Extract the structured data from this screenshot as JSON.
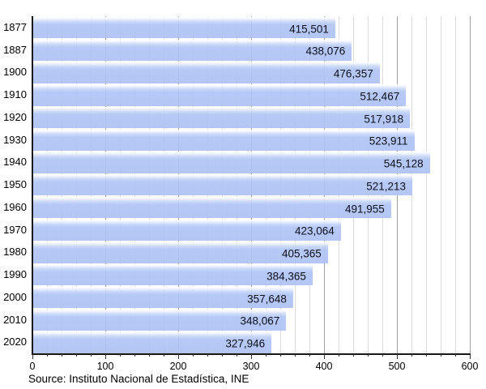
{
  "chart_data": {
    "type": "bar",
    "orientation": "horizontal",
    "title": "",
    "categories": [
      "1877",
      "1887",
      "1900",
      "1910",
      "1920",
      "1930",
      "1940",
      "1950",
      "1960",
      "1970",
      "1980",
      "1990",
      "2000",
      "2010",
      "2020"
    ],
    "values": [
      415501,
      438076,
      476357,
      512467,
      517918,
      523911,
      545128,
      521213,
      491955,
      423064,
      405365,
      384365,
      357648,
      348067,
      327946
    ],
    "value_labels": [
      "415,501",
      "438,076",
      "476,357",
      "512,467",
      "517,918",
      "523,911",
      "545,128",
      "521,213",
      "491,955",
      "423,064",
      "405,365",
      "384,365",
      "357,648",
      "348,067",
      "327,946"
    ],
    "x_axis": {
      "tick_labels": [
        "0",
        "100",
        "200",
        "300",
        "400",
        "500",
        "600"
      ],
      "min": 0,
      "max": 600,
      "minor_step": 20,
      "major_step": 100,
      "axis_value_divisor": 1000
    },
    "grid": {
      "shown": true,
      "legend": "none"
    },
    "source": "Source: Instituto Nacional de Estadística, INE",
    "colors": {
      "bar_body": "#aec2f4",
      "bar_highlight": "#ffffff",
      "grid_minor": "#dcdcdc",
      "grid_major": "#9f9f9f",
      "axis": "#1a1a1a",
      "label_text": "#000000",
      "value_text": "#0d0f1c"
    }
  }
}
